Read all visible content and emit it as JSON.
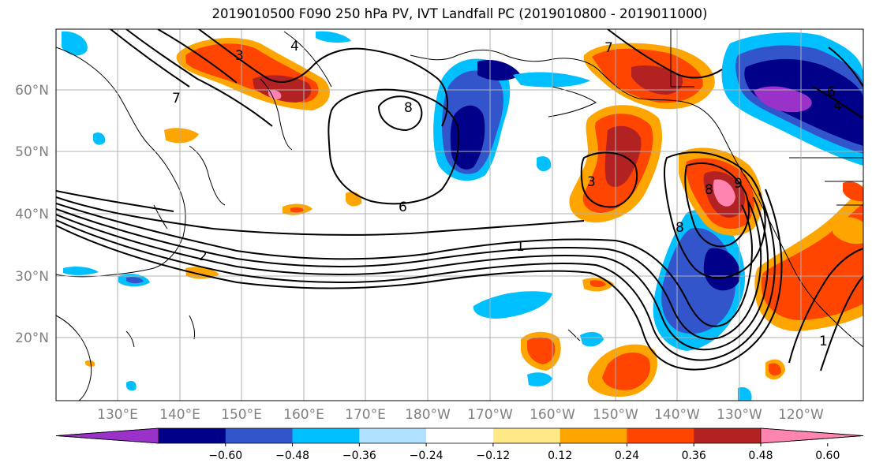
{
  "title": "2019010500 F090 250 hPa PV, IVT Landfall PC (2019010800 - 2019011000)",
  "latitude_labels": [
    "60°N",
    "50°N",
    "40°N",
    "30°N",
    "20°N"
  ],
  "longitude_labels": [
    "130°E",
    "140°E",
    "150°E",
    "160°E",
    "170°E",
    "180°W",
    "170°W",
    "160°W",
    "150°W",
    "140°W",
    "130°W",
    "120°W"
  ],
  "colorbar": {
    "tick_labels": [
      "−0.60",
      "−0.48",
      "−0.36",
      "−0.24",
      "−0.12",
      "0.12",
      "0.24",
      "0.36",
      "0.48",
      "0.60"
    ],
    "colors": [
      "#9a31c9",
      "#000088",
      "#3355cc",
      "#00bfff",
      "#b0e0ff",
      "#ffffff",
      "#ffe987",
      "#ffa500",
      "#ff4500",
      "#b22222",
      "#ff85b0"
    ]
  },
  "contour_labels": [
    "3",
    "4",
    "7",
    "8",
    "6",
    "2",
    "1",
    "8",
    "3",
    "9",
    "8",
    "7",
    "6",
    "4",
    "1"
  ]
}
